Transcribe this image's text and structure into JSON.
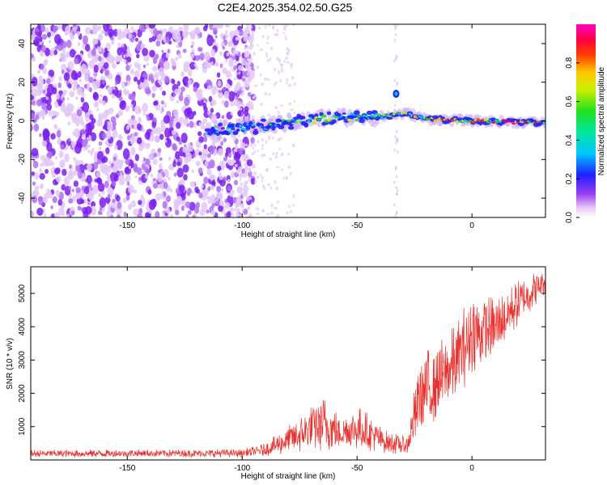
{
  "figure": {
    "title": "C2E4.2025.354.02.50.G25"
  },
  "chart_data": [
    {
      "type": "heatmap",
      "xlabel": "Height of straight line (km)",
      "ylabel": "Frequency (Hz)",
      "xlim": [
        -192,
        32
      ],
      "ylim": [
        -50,
        50
      ],
      "xticks": [
        -150,
        -100,
        -50,
        0
      ],
      "yticks": [
        -40,
        -20,
        0,
        20,
        40
      ],
      "colorbar": {
        "label": "Normalized spectral amplitude",
        "range": [
          0,
          1
        ],
        "ticks": [
          "0.0",
          "0.2",
          "0.4",
          "0.6",
          "0.8"
        ],
        "colormap": "rainbow (white-violet-blue-cyan-green-yellow-red-magenta)"
      },
      "features": {
        "noise_region_x": [
          -192,
          -100
        ],
        "signal_trace": [
          {
            "x": -115,
            "f": -5
          },
          {
            "x": -100,
            "f": -4
          },
          {
            "x": -80,
            "f": -1
          },
          {
            "x": -60,
            "f": 2
          },
          {
            "x": -40,
            "f": 2
          },
          {
            "x": -28,
            "f": 4
          },
          {
            "x": -20,
            "f": 1
          },
          {
            "x": 0,
            "f": 0
          },
          {
            "x": 32,
            "f": -1
          }
        ],
        "secondary_blob": {
          "x": -33,
          "f": 14
        }
      }
    },
    {
      "type": "line",
      "xlabel": "Height of straight line (km)",
      "ylabel": "SNR (10 * v/v)",
      "xlim": [
        -192,
        32
      ],
      "ylim": [
        0,
        5800
      ],
      "xticks": [
        -150,
        -100,
        -50,
        0
      ],
      "yticks": [
        1000,
        2000,
        3000,
        4000,
        5000
      ],
      "color": "#e8322e",
      "envelope": [
        {
          "x": -192,
          "lo": 80,
          "hi": 300
        },
        {
          "x": -100,
          "lo": 80,
          "hi": 330
        },
        {
          "x": -90,
          "lo": 100,
          "hi": 500
        },
        {
          "x": -75,
          "lo": 200,
          "hi": 1300
        },
        {
          "x": -65,
          "lo": 250,
          "hi": 2000
        },
        {
          "x": -58,
          "lo": 300,
          "hi": 1400
        },
        {
          "x": -48,
          "lo": 300,
          "hi": 1600
        },
        {
          "x": -38,
          "lo": 200,
          "hi": 900
        },
        {
          "x": -28,
          "lo": 150,
          "hi": 700
        },
        {
          "x": -23,
          "lo": 600,
          "hi": 3200
        },
        {
          "x": -10,
          "lo": 1500,
          "hi": 3800
        },
        {
          "x": 0,
          "lo": 2500,
          "hi": 5100
        },
        {
          "x": 10,
          "lo": 3000,
          "hi": 4900
        },
        {
          "x": 20,
          "lo": 4000,
          "hi": 5400
        },
        {
          "x": 32,
          "lo": 5000,
          "hi": 5800
        }
      ]
    }
  ]
}
